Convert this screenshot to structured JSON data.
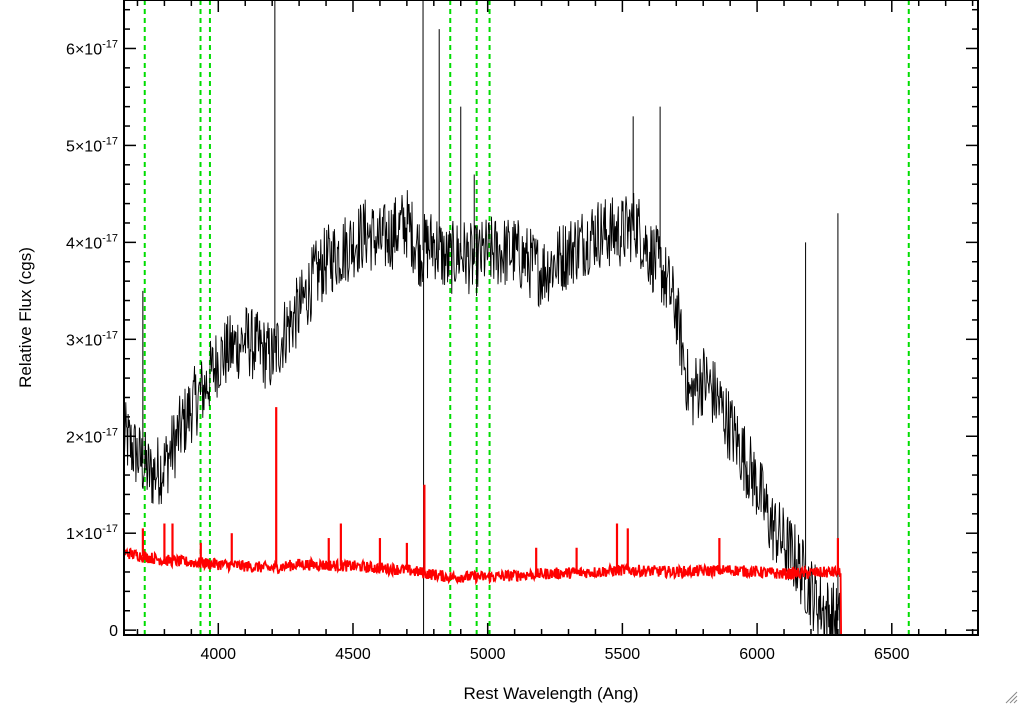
{
  "chart_data": {
    "type": "line",
    "title": "",
    "xlabel": "Rest Wavelength (Ang)",
    "ylabel": "Relative Flux (cgs)",
    "xlim": [
      3650,
      6820
    ],
    "ylim": [
      -0.05,
      6.5
    ],
    "y_scale_label": "×10",
    "y_exponent": "-17",
    "x_ticks": [
      4000,
      4500,
      5000,
      5500,
      6000,
      6500
    ],
    "x_tick_labels": [
      "4000",
      "4500",
      "5000",
      "5500",
      "6000",
      "6500"
    ],
    "y_ticks": [
      0,
      1,
      2,
      3,
      4,
      5,
      6
    ],
    "y_tick_labels": [
      "0",
      "1",
      "2",
      "3",
      "4",
      "5",
      "6"
    ],
    "grid": false,
    "series": [
      {
        "color": "#000000",
        "style": "noisy",
        "noise": 0.38,
        "x": [
          3650,
          3700,
          3750,
          3800,
          3850,
          3900,
          3950,
          4000,
          4050,
          4100,
          4150,
          4200,
          4250,
          4300,
          4350,
          4400,
          4450,
          4500,
          4550,
          4600,
          4650,
          4700,
          4750,
          4800,
          4850,
          4900,
          4950,
          5000,
          5050,
          5100,
          5150,
          5200,
          5250,
          5300,
          5350,
          5400,
          5450,
          5500,
          5550,
          5600,
          5650,
          5700,
          5750,
          5800,
          5850,
          5900,
          5950,
          6000,
          6050,
          6100,
          6150,
          6200,
          6250,
          6300,
          6310
        ],
        "y": [
          2.0,
          1.8,
          1.6,
          1.7,
          2.0,
          2.3,
          2.5,
          2.8,
          2.9,
          3.0,
          2.9,
          2.8,
          3.1,
          3.3,
          3.6,
          3.8,
          3.9,
          4.0,
          4.1,
          4.0,
          4.1,
          4.2,
          3.9,
          4.0,
          3.8,
          3.9,
          3.8,
          3.9,
          3.9,
          3.9,
          3.8,
          3.7,
          3.8,
          3.9,
          4.0,
          4.1,
          4.1,
          4.1,
          4.2,
          3.9,
          3.7,
          3.3,
          2.4,
          2.6,
          2.4,
          2.1,
          1.8,
          1.5,
          1.1,
          0.9,
          0.7,
          0.4,
          0.2,
          0.1,
          0.0
        ],
        "spikes": [
          {
            "x": 4210,
            "y": 6.6
          },
          {
            "x": 4760,
            "y": 6.6
          },
          {
            "x": 4762,
            "y": -0.05
          },
          {
            "x": 4820,
            "y": 6.2
          },
          {
            "x": 4900,
            "y": 5.4
          },
          {
            "x": 4950,
            "y": 4.7
          },
          {
            "x": 5540,
            "y": 5.3
          },
          {
            "x": 5640,
            "y": 5.4
          },
          {
            "x": 6300,
            "y": 4.3
          },
          {
            "x": 6180,
            "y": 4.0
          },
          {
            "x": 3720,
            "y": 3.5
          }
        ]
      },
      {
        "color": "#ff0000",
        "style": "noisy",
        "noise": 0.06,
        "x": [
          3650,
          3800,
          4000,
          4200,
          4300,
          4500,
          4700,
          4850,
          5000,
          5200,
          5400,
          5500,
          5700,
          5900,
          6100,
          6300,
          6310,
          6311,
          6820
        ],
        "y": [
          0.8,
          0.72,
          0.68,
          0.64,
          0.68,
          0.66,
          0.62,
          0.55,
          0.55,
          0.58,
          0.6,
          0.62,
          0.6,
          0.62,
          0.58,
          0.6,
          0.6,
          -0.05,
          -0.05
        ],
        "spikes": [
          {
            "x": 3720,
            "y": 1.05
          },
          {
            "x": 3800,
            "y": 1.1
          },
          {
            "x": 3830,
            "y": 1.1
          },
          {
            "x": 3935,
            "y": 0.9
          },
          {
            "x": 4050,
            "y": 1.0
          },
          {
            "x": 4215,
            "y": 2.3
          },
          {
            "x": 4410,
            "y": 0.95
          },
          {
            "x": 4455,
            "y": 1.1
          },
          {
            "x": 4600,
            "y": 0.95
          },
          {
            "x": 4700,
            "y": 0.9
          },
          {
            "x": 4765,
            "y": 1.5
          },
          {
            "x": 5180,
            "y": 0.85
          },
          {
            "x": 5330,
            "y": 0.85
          },
          {
            "x": 5480,
            "y": 1.1
          },
          {
            "x": 5520,
            "y": 1.05
          },
          {
            "x": 5860,
            "y": 0.95
          },
          {
            "x": 6300,
            "y": 0.95
          }
        ]
      }
    ],
    "vertical_lines": {
      "color": "#00dd00",
      "style": "dashed",
      "x": [
        3727,
        3934,
        3969,
        4861,
        4959,
        5007,
        6563
      ]
    }
  }
}
